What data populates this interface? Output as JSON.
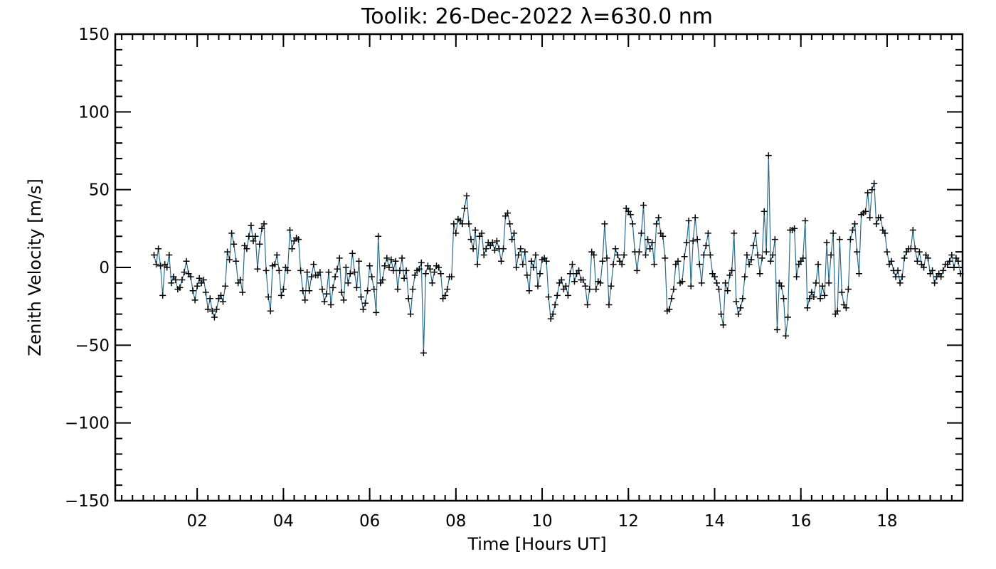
{
  "chart_data": {
    "type": "line",
    "title": "Toolik: 26-Dec-2022 λ=630.0 nm",
    "xlabel": "Time [Hours UT]",
    "ylabel": "Zenith Velocity [m/s]",
    "xlim": [
      0.1,
      19.75
    ],
    "ylim": [
      -150,
      150
    ],
    "x_ticks": [
      2,
      4,
      6,
      8,
      10,
      12,
      14,
      16,
      18
    ],
    "x_tick_labels": [
      "02",
      "04",
      "06",
      "08",
      "10",
      "12",
      "14",
      "16",
      "18"
    ],
    "y_ticks": [
      -150,
      -100,
      -50,
      0,
      50,
      100,
      150
    ],
    "y_tick_labels": [
      "−150",
      "−100",
      "−50",
      "0",
      "50",
      "100",
      "150"
    ],
    "grid": false,
    "legend": "none",
    "line_color": "#2a6c8c",
    "marker_color": "#000000",
    "marker": "plus",
    "series": [
      {
        "x_start": 1.0,
        "x_step": 0.05,
        "values": [
          8,
          2,
          12,
          1,
          -18,
          2,
          0,
          8,
          -10,
          -6,
          -8,
          -14,
          -13,
          -8,
          -3,
          4,
          -4,
          -6,
          -15,
          -21,
          -12,
          -7,
          -10,
          -8,
          -16,
          -27,
          -20,
          -28,
          -32,
          -27,
          -20,
          -18,
          -22,
          -12,
          10,
          5,
          22,
          15,
          4,
          -10,
          -8,
          -16,
          14,
          12,
          20,
          27,
          17,
          20,
          -1,
          15,
          25,
          28,
          -2,
          -19,
          -28,
          1,
          2,
          8,
          -2,
          -18,
          -14,
          0,
          -2,
          24,
          12,
          17,
          19,
          18,
          -2,
          -15,
          -21,
          -3,
          -15,
          -6,
          2,
          -5,
          -5,
          -3,
          -14,
          -22,
          -17,
          -3,
          -24,
          -13,
          -6,
          -1,
          6,
          -16,
          -21,
          0,
          -10,
          -4,
          9,
          -3,
          -13,
          4,
          -19,
          -27,
          -23,
          -15,
          1,
          -6,
          -14,
          -29,
          20,
          -10,
          -8,
          1,
          6,
          0,
          5,
          -2,
          4,
          -14,
          -2,
          6,
          -7,
          -2,
          -20,
          -30,
          -14,
          -5,
          -2,
          -1,
          3,
          -55,
          -4,
          1,
          -1,
          -10,
          -3,
          1,
          0,
          -4,
          -20,
          -18,
          -14,
          -6,
          -6,
          28,
          22,
          31,
          30,
          28,
          38,
          46,
          28,
          18,
          12,
          24,
          2,
          20,
          22,
          8,
          12,
          16,
          14,
          16,
          11,
          17,
          12,
          4,
          12,
          33,
          35,
          28,
          18,
          22,
          0,
          8,
          12,
          2,
          10,
          -5,
          -15,
          4,
          0,
          8,
          -12,
          -4,
          5,
          6,
          4,
          -19,
          -33,
          -30,
          -24,
          -18,
          -10,
          -8,
          -14,
          -12,
          -18,
          -4,
          2,
          -9,
          -4,
          -2,
          -8,
          -8,
          -12,
          -24,
          -14,
          10,
          8,
          -14,
          -9,
          -10,
          4,
          28,
          6,
          -24,
          -12,
          2,
          12,
          8,
          4,
          2,
          8,
          38,
          36,
          34,
          28,
          10,
          -2,
          10,
          22,
          40,
          8,
          18,
          12,
          16,
          2,
          28,
          32,
          22,
          20,
          6,
          -28,
          -27,
          -20,
          -14,
          2,
          4,
          -10,
          -9,
          7,
          16,
          30,
          -12,
          17,
          32,
          18,
          2,
          -10,
          8,
          14,
          22,
          8,
          -4,
          -6,
          -10,
          -14,
          -30,
          -37,
          -10,
          -15,
          -5,
          -2,
          22,
          -22,
          -30,
          -26,
          -20,
          -6,
          8,
          2,
          5,
          14,
          22,
          8,
          -4,
          6,
          36,
          10,
          72,
          4,
          8,
          18,
          -40,
          -10,
          -12,
          -20,
          -44,
          -32,
          24,
          24,
          25,
          -6,
          2,
          4,
          6,
          30,
          -26,
          -20,
          -16,
          -19,
          -10,
          2,
          -20,
          -12,
          -18,
          16,
          -10,
          8,
          22,
          -30,
          -28,
          18,
          -16,
          -24,
          -26,
          -14,
          18,
          24,
          28,
          10,
          -4,
          34,
          35,
          36,
          48,
          32,
          50,
          54,
          28,
          32,
          32,
          24,
          22,
          10,
          2,
          4,
          -2,
          -6,
          -2,
          -10,
          -6,
          6,
          10,
          12,
          12,
          24,
          12,
          4,
          10,
          2,
          0,
          8,
          6,
          -4,
          -2,
          -10,
          -6,
          -4,
          -6,
          -2,
          2,
          2,
          4,
          8,
          0,
          6,
          4,
          -4
        ]
      }
    ]
  }
}
